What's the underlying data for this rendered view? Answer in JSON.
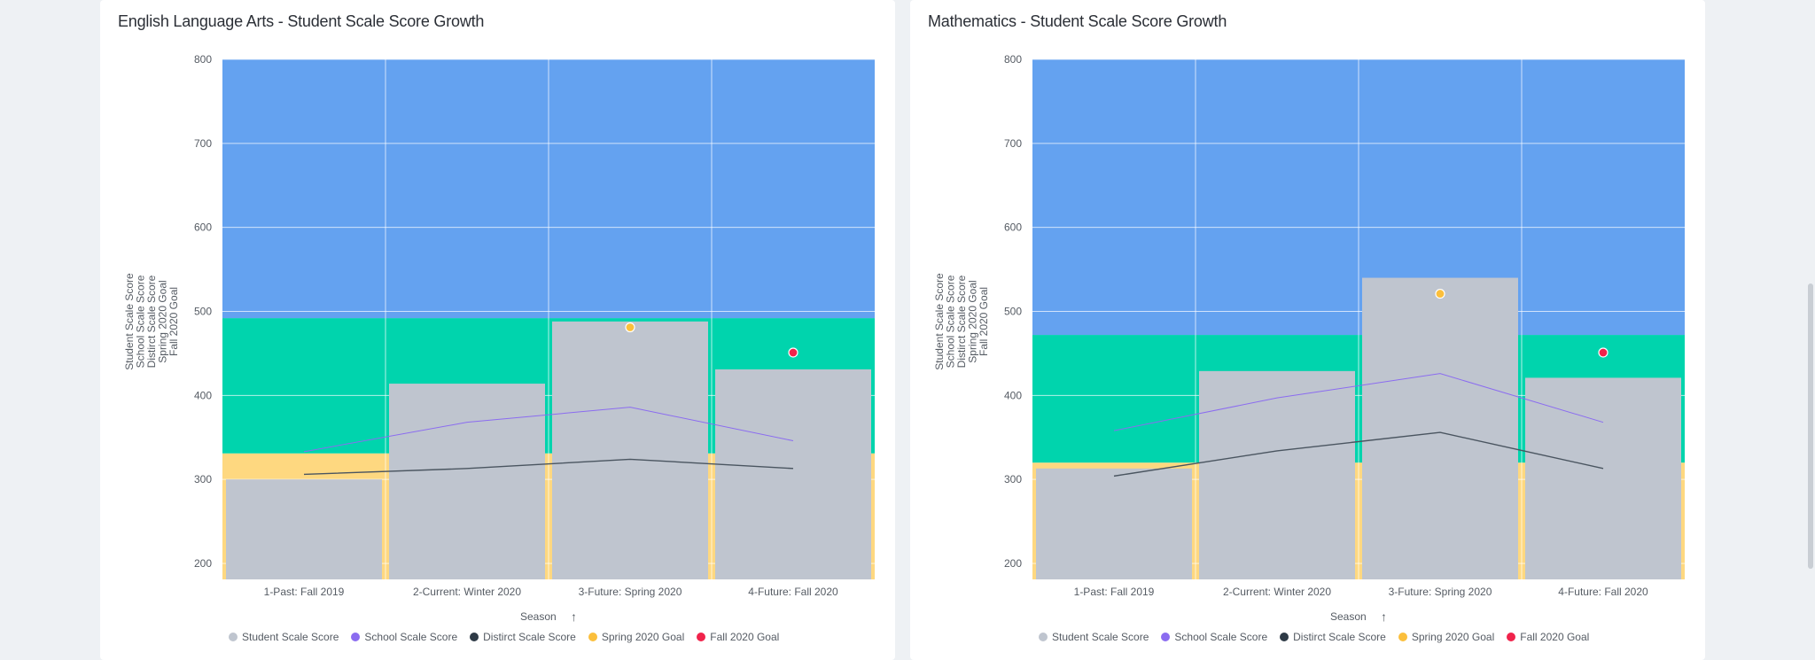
{
  "colors": {
    "above": "#64a2f0",
    "meets": "#00d4ad",
    "below": "#fed880",
    "student": "#bfc5cf",
    "school": "#8b6cf0",
    "district": "#4a5560",
    "spring_goal": "#fbbf3c",
    "fall_goal": "#f0234b"
  },
  "legend": [
    {
      "label": "Student Scale Score",
      "color": "#bfc5cf"
    },
    {
      "label": "School Scale Score",
      "color": "#8b6cf0"
    },
    {
      "label": "Distirct Scale Score",
      "color": "#2e3a46"
    },
    {
      "label": "Spring 2020 Goal",
      "color": "#fbbf3c"
    },
    {
      "label": "Fall 2020 Goal",
      "color": "#f0234b"
    }
  ],
  "chart_data": [
    {
      "type": "bar",
      "title": "English Language Arts - Student Scale Score Growth",
      "xlabel": "Season",
      "ylabel": [
        "Student Scale Score",
        "School Scale Score",
        "Distirct Scale Score",
        "Spring 2020 Goal",
        "Fall 2020 Goal"
      ],
      "categories": [
        "1-Past: Fall 2019",
        "2-Current: Winter 2020",
        "3-Future: Spring 2020",
        "4-Future: Fall 2020"
      ],
      "ylim": [
        181,
        800
      ],
      "yticks": [
        200,
        300,
        400,
        500,
        600,
        700,
        800
      ],
      "grid": true,
      "legend_position": "bottom",
      "bands": [
        {
          "from": 181,
          "to": 331,
          "color": "#fed880"
        },
        {
          "from": 331,
          "to": 492,
          "color": "#00d4ad"
        },
        {
          "from": 492,
          "to": 800,
          "color": "#64a2f0"
        }
      ],
      "series": [
        {
          "name": "Student Scale Score",
          "type": "bar",
          "values": [
            300,
            414,
            488,
            431
          ]
        },
        {
          "name": "School Scale Score",
          "type": "line",
          "values": [
            333,
            368,
            386,
            346
          ]
        },
        {
          "name": "Distirct Scale Score",
          "type": "line",
          "values": [
            306,
            313,
            324,
            313
          ]
        },
        {
          "name": "Spring 2020 Goal",
          "type": "point",
          "values": [
            null,
            null,
            481,
            null
          ]
        },
        {
          "name": "Fall 2020 Goal",
          "type": "point",
          "values": [
            null,
            null,
            null,
            451
          ]
        }
      ]
    },
    {
      "type": "bar",
      "title": "Mathematics - Student Scale Score Growth",
      "xlabel": "Season",
      "ylabel": [
        "Student Scale Score",
        "School Scale Score",
        "Distirct Scale Score",
        "Spring 2020 Goal",
        "Fall 2020 Goal"
      ],
      "categories": [
        "1-Past: Fall 2019",
        "2-Current: Winter 2020",
        "3-Future: Spring 2020",
        "4-Future: Fall 2020"
      ],
      "ylim": [
        181,
        800
      ],
      "yticks": [
        200,
        300,
        400,
        500,
        600,
        700,
        800
      ],
      "grid": true,
      "legend_position": "bottom",
      "bands": [
        {
          "from": 181,
          "to": 320,
          "color": "#fed880"
        },
        {
          "from": 320,
          "to": 472,
          "color": "#00d4ad"
        },
        {
          "from": 472,
          "to": 800,
          "color": "#64a2f0"
        }
      ],
      "series": [
        {
          "name": "Student Scale Score",
          "type": "bar",
          "values": [
            313,
            429,
            540,
            421
          ]
        },
        {
          "name": "School Scale Score",
          "type": "line",
          "values": [
            358,
            397,
            426,
            368
          ]
        },
        {
          "name": "Distirct Scale Score",
          "type": "line",
          "values": [
            304,
            334,
            356,
            313
          ]
        },
        {
          "name": "Spring 2020 Goal",
          "type": "point",
          "values": [
            null,
            null,
            521,
            null
          ]
        },
        {
          "name": "Fall 2020 Goal",
          "type": "point",
          "values": [
            null,
            null,
            null,
            451
          ]
        }
      ]
    }
  ]
}
